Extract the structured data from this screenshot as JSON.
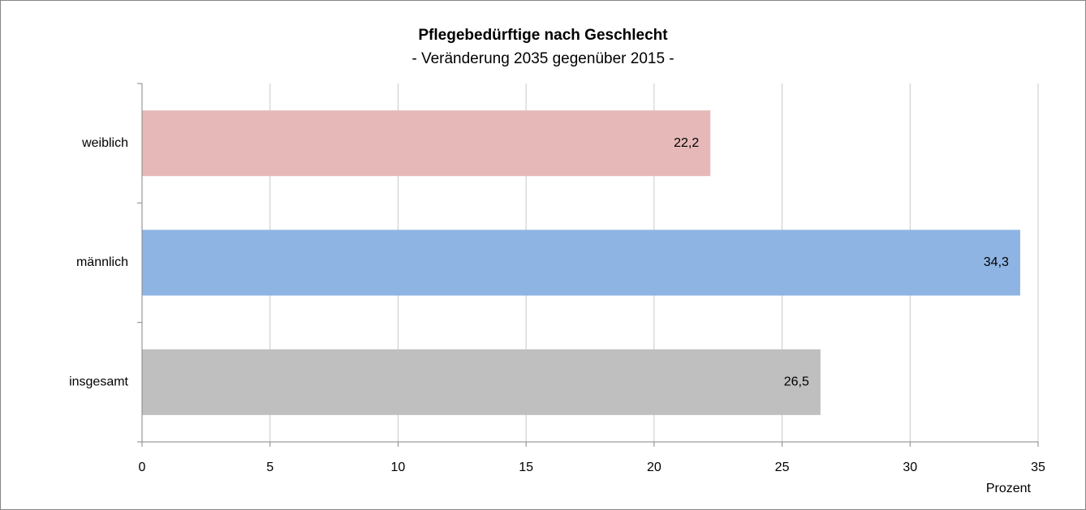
{
  "chart_data": {
    "type": "barh",
    "title": "Pflegebedürftige nach Geschlecht",
    "subtitle": "- Veränderung 2035 gegenüber 2015 -",
    "x_label": "Prozent",
    "categories": [
      "weiblich",
      "männlich",
      "insgesamt"
    ],
    "values": [
      22.2,
      34.3,
      26.5
    ],
    "value_labels": [
      "22,2",
      "34,3",
      "26,5"
    ],
    "colors": [
      "#e6b9b8",
      "#8eb4e3",
      "#bfbfbf"
    ],
    "xlim": [
      0,
      35
    ],
    "xticks": [
      0,
      5,
      10,
      15,
      20,
      25,
      30,
      35
    ],
    "grid": true
  }
}
